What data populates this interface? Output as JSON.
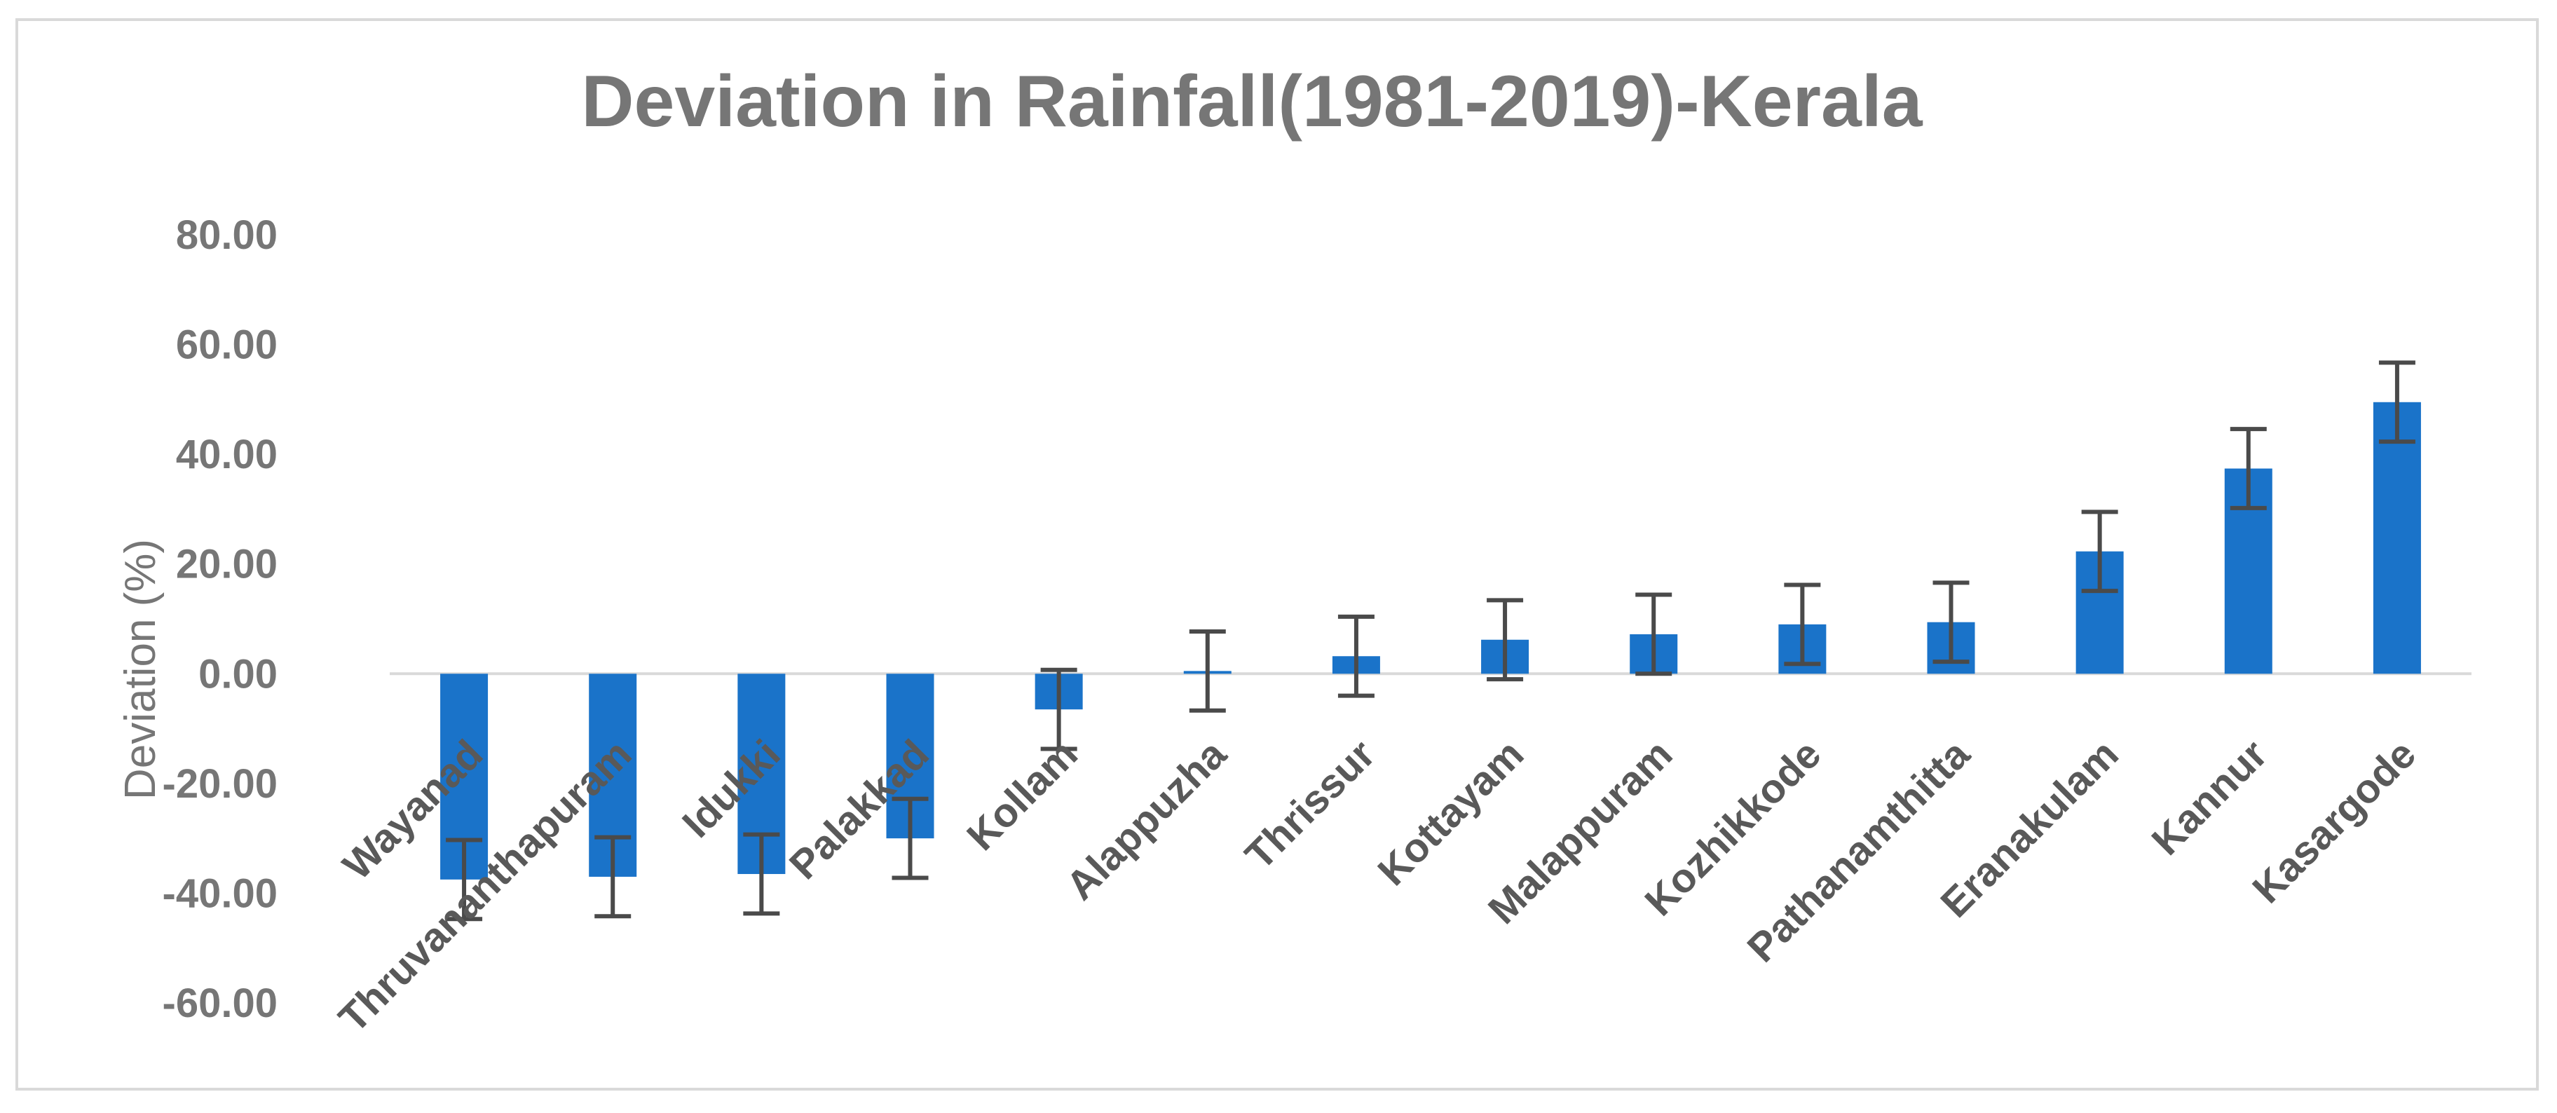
{
  "chart_data": {
    "type": "bar",
    "title": "Deviation in Rainfall(1981-2019)-Kerala",
    "xlabel": "",
    "ylabel": "Deviation (%)",
    "ylim": [
      -60,
      80
    ],
    "ytick_values": [
      80,
      60,
      40,
      20,
      0,
      -20,
      -40,
      -60
    ],
    "ytick_labels": [
      "80.00",
      "60.00",
      "40.00",
      "20.00",
      "0.00",
      "-20.00",
      "-40.00",
      "-60.00"
    ],
    "categories": [
      "Wayanad",
      "Thruvananthapuram",
      "Idukki",
      "Palakkad",
      "Kollam",
      "Alappuzha",
      "Thrissur",
      "Kottayam",
      "Malappuram",
      "Kozhikkode",
      "Pathanamthitta",
      "Eranakulam",
      "Kannur",
      "Kasargode"
    ],
    "values": [
      -37.5,
      -37,
      -36.5,
      -30,
      -6.5,
      0.5,
      3.2,
      6.2,
      7.2,
      9,
      9.4,
      22.3,
      37.4,
      49.5
    ],
    "error": 7.2,
    "grid": false,
    "legend": "none",
    "colors": {
      "bar": "#1a73c9",
      "error_bar": "#4a4a4a",
      "axis": "#d9d9d9",
      "border": "#d9d9d9"
    }
  }
}
